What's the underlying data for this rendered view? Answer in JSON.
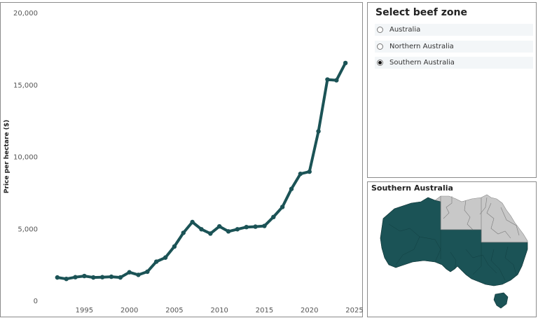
{
  "filter": {
    "title": "Select beef zone",
    "options": [
      {
        "label": "Australia",
        "selected": false
      },
      {
        "label": "Northern Australia",
        "selected": false
      },
      {
        "label": "Southern Australia",
        "selected": true
      }
    ]
  },
  "map": {
    "title": "Southern Australia",
    "highlight_color": "#1b5356",
    "other_color": "#c8c8c8"
  },
  "chart_data": {
    "type": "line",
    "title": "",
    "xlabel": "",
    "ylabel": "Price per hectare ($)",
    "xlim": [
      1991,
      2025
    ],
    "ylim": [
      0,
      20000
    ],
    "x_ticks": [
      1995,
      2000,
      2005,
      2010,
      2015,
      2020,
      2025
    ],
    "y_ticks": [
      0,
      5000,
      10000,
      15000,
      20000
    ],
    "y_tick_labels": [
      "0",
      "5,000",
      "10,000",
      "15,000",
      "20,000"
    ],
    "grid": false,
    "series": [
      {
        "color": "#1b5356",
        "x": [
          1992,
          1993,
          1994,
          1995,
          1996,
          1997,
          1998,
          1999,
          2000,
          2001,
          2002,
          2003,
          2004,
          2005,
          2006,
          2007,
          2008,
          2009,
          2010,
          2011,
          2012,
          2013,
          2014,
          2015,
          2016,
          2017,
          2018,
          2019,
          2020,
          2021,
          2022,
          2023,
          2024
        ],
        "y": [
          1600,
          1500,
          1620,
          1700,
          1600,
          1620,
          1650,
          1600,
          1960,
          1780,
          2000,
          2700,
          2980,
          3750,
          4700,
          5450,
          4950,
          4650,
          5150,
          4800,
          4950,
          5100,
          5130,
          5180,
          5800,
          6500,
          7750,
          8800,
          8950,
          11750,
          15350,
          15300,
          16500
        ]
      }
    ]
  }
}
